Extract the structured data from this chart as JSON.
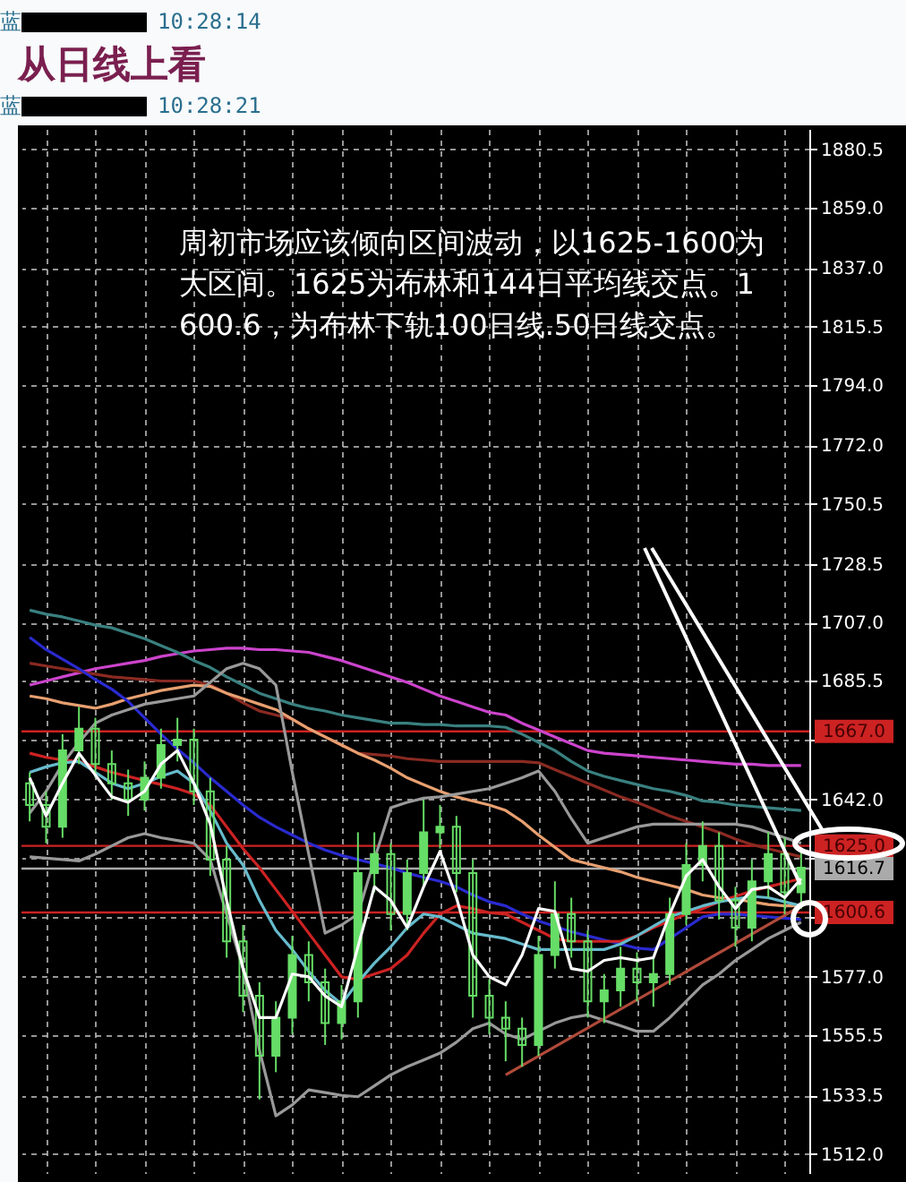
{
  "chart_data": {
    "type": "candlestick",
    "title": "从日线上看",
    "annotations": [
      "蓝",
      "10:28:14",
      "蓝",
      "10:28:21",
      "周初市场应该倾向区间波动，以1625-1600为大区间。1625为布林和144日平均线交点。1600.6，为布林下轨100日线.50日线交点。"
    ],
    "categories": [
      null,
      null,
      null,
      null,
      null,
      null,
      null,
      null,
      null,
      null,
      null,
      null,
      null,
      null,
      null,
      null,
      null,
      null,
      null,
      null,
      null,
      null,
      null,
      null,
      null,
      null,
      null,
      null,
      null,
      null,
      null,
      null,
      null,
      null,
      null,
      null,
      null,
      null,
      null,
      null,
      null,
      null,
      null,
      null,
      null,
      null,
      null,
      null
    ],
    "color": "#66dd66",
    "ohlc": [
      [
        1648,
        1652,
        1634,
        1640
      ],
      [
        1640,
        1645,
        1626,
        1632
      ],
      [
        1632,
        1666,
        1628,
        1660
      ],
      [
        1660,
        1676,
        1655,
        1668
      ],
      [
        1668,
        1672,
        1650,
        1655
      ],
      [
        1655,
        1660,
        1642,
        1648
      ],
      [
        1648,
        1653,
        1636,
        1642
      ],
      [
        1642,
        1656,
        1638,
        1650
      ],
      [
        1650,
        1668,
        1646,
        1662
      ],
      [
        1662,
        1672,
        1656,
        1664
      ],
      [
        1664,
        1668,
        1640,
        1645
      ],
      [
        1645,
        1650,
        1614,
        1620
      ],
      [
        1620,
        1625,
        1584,
        1590
      ],
      [
        1590,
        1596,
        1564,
        1570
      ],
      [
        1570,
        1575,
        1532,
        1548
      ],
      [
        1548,
        1568,
        1542,
        1562
      ],
      [
        1562,
        1592,
        1556,
        1585
      ],
      [
        1585,
        1590,
        1568,
        1575
      ],
      [
        1575,
        1580,
        1552,
        1560
      ],
      [
        1560,
        1574,
        1554,
        1568
      ],
      [
        1568,
        1630,
        1562,
        1615
      ],
      [
        1615,
        1630,
        1608,
        1622
      ],
      [
        1622,
        1626,
        1594,
        1600
      ],
      [
        1600,
        1620,
        1594,
        1615
      ],
      [
        1615,
        1642,
        1610,
        1630
      ],
      [
        1630,
        1640,
        1624,
        1632
      ],
      [
        1632,
        1636,
        1608,
        1615
      ],
      [
        1615,
        1620,
        1562,
        1570
      ],
      [
        1570,
        1576,
        1556,
        1562
      ],
      [
        1562,
        1568,
        1546,
        1558
      ],
      [
        1558,
        1562,
        1544,
        1552
      ],
      [
        1552,
        1592,
        1548,
        1585
      ],
      [
        1585,
        1612,
        1580,
        1600
      ],
      [
        1600,
        1606,
        1584,
        1590
      ],
      [
        1590,
        1594,
        1562,
        1568
      ],
      [
        1568,
        1578,
        1560,
        1572
      ],
      [
        1572,
        1588,
        1566,
        1580
      ],
      [
        1580,
        1586,
        1568,
        1575
      ],
      [
        1575,
        1584,
        1566,
        1578
      ],
      [
        1578,
        1606,
        1574,
        1600
      ],
      [
        1600,
        1626,
        1596,
        1618
      ],
      [
        1618,
        1634,
        1612,
        1625
      ],
      [
        1625,
        1630,
        1598,
        1605
      ],
      [
        1605,
        1610,
        1588,
        1595
      ],
      [
        1595,
        1620,
        1590,
        1612
      ],
      [
        1612,
        1630,
        1606,
        1622
      ],
      [
        1622,
        1628,
        1600,
        1608
      ],
      [
        1608,
        1624,
        1602,
        1617
      ]
    ],
    "series": [
      {
        "type": "line",
        "color": "#cc44cc",
        "values": [
          1684,
          1685.5,
          1687,
          1688.5,
          1690,
          1691,
          1692,
          1693,
          1694.5,
          1695.5,
          1696.5,
          1697,
          1697.5,
          1697.5,
          1697,
          1697,
          1696.5,
          1696,
          1694.5,
          1693,
          1691,
          1689,
          1687,
          1685,
          1682.5,
          1680,
          1678,
          1676,
          1674,
          1673,
          1670,
          1667.5,
          1665,
          1662.5,
          1660,
          1659,
          1658.5,
          1658,
          1657.5,
          1657,
          1656.5,
          1656,
          1655.5,
          1655,
          1655,
          1654.5,
          1654.5,
          1654.5
        ]
      },
      {
        "type": "line",
        "color": "#3a8080",
        "values": [
          1711.5,
          1710,
          1709,
          1707.5,
          1706,
          1705,
          1703,
          1701,
          1698.5,
          1696,
          1693,
          1690.5,
          1687,
          1684,
          1681,
          1679,
          1677,
          1675.5,
          1674.5,
          1673,
          1672,
          1671,
          1670,
          1670,
          1669.5,
          1669.5,
          1669,
          1669,
          1669,
          1668.5,
          1666,
          1663,
          1660,
          1656,
          1652.5,
          1650.5,
          1649,
          1647.5,
          1646,
          1645,
          1643.5,
          1641.5,
          1641,
          1640,
          1639.5,
          1639,
          1638.5,
          1638
        ]
      },
      {
        "type": "line",
        "color": "#8a2a22",
        "values": [
          1692,
          1691,
          1690,
          1689,
          1688,
          1687,
          1686.5,
          1686,
          1685.5,
          1685.5,
          1685.5,
          1684,
          1681,
          1677.5,
          1674.5,
          1673,
          1671.5,
          1668,
          1665,
          1662,
          1659,
          1658.5,
          1658,
          1657,
          1656.5,
          1656,
          1656,
          1656,
          1656,
          1656,
          1656,
          1655.5,
          1653,
          1650.5,
          1648,
          1645.5,
          1643,
          1641,
          1638.5,
          1636,
          1634,
          1632,
          1630,
          1627.5,
          1625.5,
          1624,
          1622.5,
          1621
        ]
      },
      {
        "type": "line",
        "color": "#e8a070",
        "values": [
          1680,
          1679,
          1677.5,
          1676.5,
          1675.5,
          1677,
          1679,
          1680.5,
          1682,
          1683,
          1684,
          1683.5,
          1681,
          1679,
          1677,
          1675,
          1671.5,
          1668,
          1665,
          1662,
          1659,
          1656.5,
          1653.5,
          1650,
          1647.5,
          1645,
          1643,
          1641.5,
          1640,
          1638,
          1634,
          1629,
          1624.5,
          1620,
          1618.5,
          1617,
          1615.5,
          1613.5,
          1612,
          1610.5,
          1609,
          1607,
          1606,
          1605.5,
          1604.5,
          1603.5,
          1603,
          1603
        ]
      },
      {
        "type": "line",
        "color": "#2a2ad0",
        "values": [
          1701.5,
          1697,
          1693.5,
          1690,
          1686,
          1682.5,
          1678,
          1672,
          1666,
          1660.5,
          1655.5,
          1650,
          1645,
          1640,
          1635.5,
          1632,
          1629,
          1626,
          1623.5,
          1621.5,
          1620,
          1618.5,
          1617,
          1615,
          1613.5,
          1612,
          1610,
          1607,
          1604.5,
          1603,
          1600,
          1597.5,
          1595.5,
          1593.5,
          1592,
          1590.5,
          1589,
          1587.5,
          1587,
          1591,
          1595,
          1599,
          1600,
          1600,
          1599.5,
          1599,
          1598.5,
          1598
        ]
      },
      {
        "type": "line",
        "color": "#cc2222",
        "values": [
          1659,
          1657.5,
          1656.5,
          1656,
          1654,
          1652,
          1650.5,
          1649,
          1647.5,
          1646,
          1644,
          1640,
          1632,
          1624,
          1617,
          1609,
          1601,
          1593,
          1585,
          1577,
          1576,
          1578,
          1580,
          1585,
          1593,
          1600,
          1603,
          1602,
          1600.5,
          1600,
          1597,
          1594,
          1591,
          1590,
          1590,
          1590,
          1590,
          1592,
          1595,
          1597.5,
          1600,
          1602,
          1604.5,
          1606.5,
          1608.5,
          1610,
          1611.5,
          1613
        ]
      },
      {
        "type": "line",
        "color": "#66bbcc",
        "values": [
          1652,
          1654,
          1655.5,
          1656,
          1652,
          1648,
          1646,
          1648,
          1650.5,
          1652.5,
          1648,
          1638,
          1626,
          1618,
          1605,
          1594,
          1587,
          1579,
          1572,
          1567,
          1575,
          1582,
          1588,
          1595,
          1600,
          1599,
          1596,
          1593,
          1592,
          1591,
          1589,
          1587,
          1587,
          1587,
          1587,
          1587,
          1589,
          1592,
          1595.5,
          1599,
          1601,
          1603,
          1604.5,
          1605.5,
          1606.5,
          1606,
          1604.5,
          1603
        ]
      },
      {
        "type": "line",
        "color": "#ffffff",
        "values": [
          1650,
          1636,
          1648,
          1659,
          1651,
          1643,
          1641,
          1645,
          1655,
          1660,
          1648,
          1633,
          1605,
          1580,
          1562,
          1562,
          1578,
          1577,
          1570,
          1566,
          1588,
          1610,
          1605,
          1595,
          1610,
          1623,
          1606,
          1585,
          1577,
          1574,
          1585,
          1602,
          1601,
          1580,
          1579,
          1583,
          1584,
          1583,
          1584,
          1600,
          1614,
          1620,
          1610,
          1602,
          1609,
          1610,
          1606,
          1613
        ]
      },
      {
        "type": "line",
        "color": "#999999",
        "values": [
          1637,
          1645,
          1655,
          1663,
          1670,
          1673,
          1675,
          1677,
          1678,
          1679,
          1680,
          1685,
          1690,
          1692,
          1690,
          1684,
          1652,
          1622,
          1593,
          1596,
          1600,
          1620,
          1639,
          1641,
          1642.5,
          1643,
          1644,
          1645,
          1646,
          1648,
          1650,
          1652.5,
          1645,
          1635,
          1626,
          1628,
          1630,
          1632,
          1633,
          1633,
          1633,
          1633,
          1633,
          1633,
          1632,
          1630,
          1628,
          1626
        ]
      },
      {
        "type": "line",
        "color": "#999999",
        "values": [
          1621,
          1620.5,
          1620,
          1619.5,
          1622,
          1625,
          1628,
          1629.5,
          1628,
          1627,
          1626,
          1620,
          1600,
          1580,
          1550,
          1526,
          1530,
          1535.5,
          1534.5,
          1533.5,
          1533,
          1537,
          1541,
          1544,
          1546.5,
          1549,
          1553,
          1558,
          1560,
          1556,
          1554,
          1557,
          1560,
          1562,
          1563,
          1561,
          1559,
          1557,
          1557,
          1562,
          1568,
          1574,
          1578,
          1583,
          1587,
          1591,
          1594,
          1597
        ]
      },
      {
        "type": "line",
        "color": "#b04a3a",
        "values": [
          null,
          null,
          null,
          null,
          null,
          null,
          null,
          null,
          null,
          null,
          null,
          null,
          null,
          null,
          null,
          null,
          null,
          null,
          null,
          null,
          null,
          null,
          null,
          null,
          null,
          null,
          null,
          null,
          null,
          1541,
          null,
          null,
          null,
          null,
          null,
          null,
          null,
          null,
          null,
          null,
          null,
          null,
          null,
          null,
          null,
          null,
          null,
          1603
        ]
      }
    ],
    "ylim": [
      1505,
      1888
    ],
    "yticks": [
      1880.5,
      {
        "value": 1859,
        "label": "1859.0"
      },
      {
        "value": 1837,
        "label": "1837.0"
      },
      1815.5,
      {
        "value": 1794,
        "label": "1794.0"
      },
      {
        "value": 1772,
        "label": "1772.0"
      },
      1750.5,
      1728.5,
      {
        "value": 1707,
        "label": "1707.0"
      },
      1685.5,
      {
        "value": 1664,
        "label": null
      },
      {
        "value": 1642,
        "label": "1642.0"
      },
      {
        "value": 1620.5,
        "label": null
      },
      {
        "value": 1599,
        "label": null
      },
      {
        "value": 1577,
        "label": "1577.0"
      },
      1555.5,
      1533.5,
      {
        "value": 1512,
        "label": "1512.0"
      }
    ],
    "grid": true,
    "tick_labels": "y",
    "ref_lines": [
      {
        "axis": "y",
        "value": 1667,
        "label": "1667.0",
        "color": "#cc2222"
      },
      {
        "axis": "y",
        "value": 1625,
        "label": "1625.0",
        "color": "#cc2222"
      },
      {
        "axis": "y",
        "value": 1616.7,
        "label": "1616.7",
        "color": "#aaaaaa"
      },
      {
        "axis": "y",
        "value": 1600.6,
        "label": "1600.6",
        "color": "#cc2222"
      }
    ]
  }
}
